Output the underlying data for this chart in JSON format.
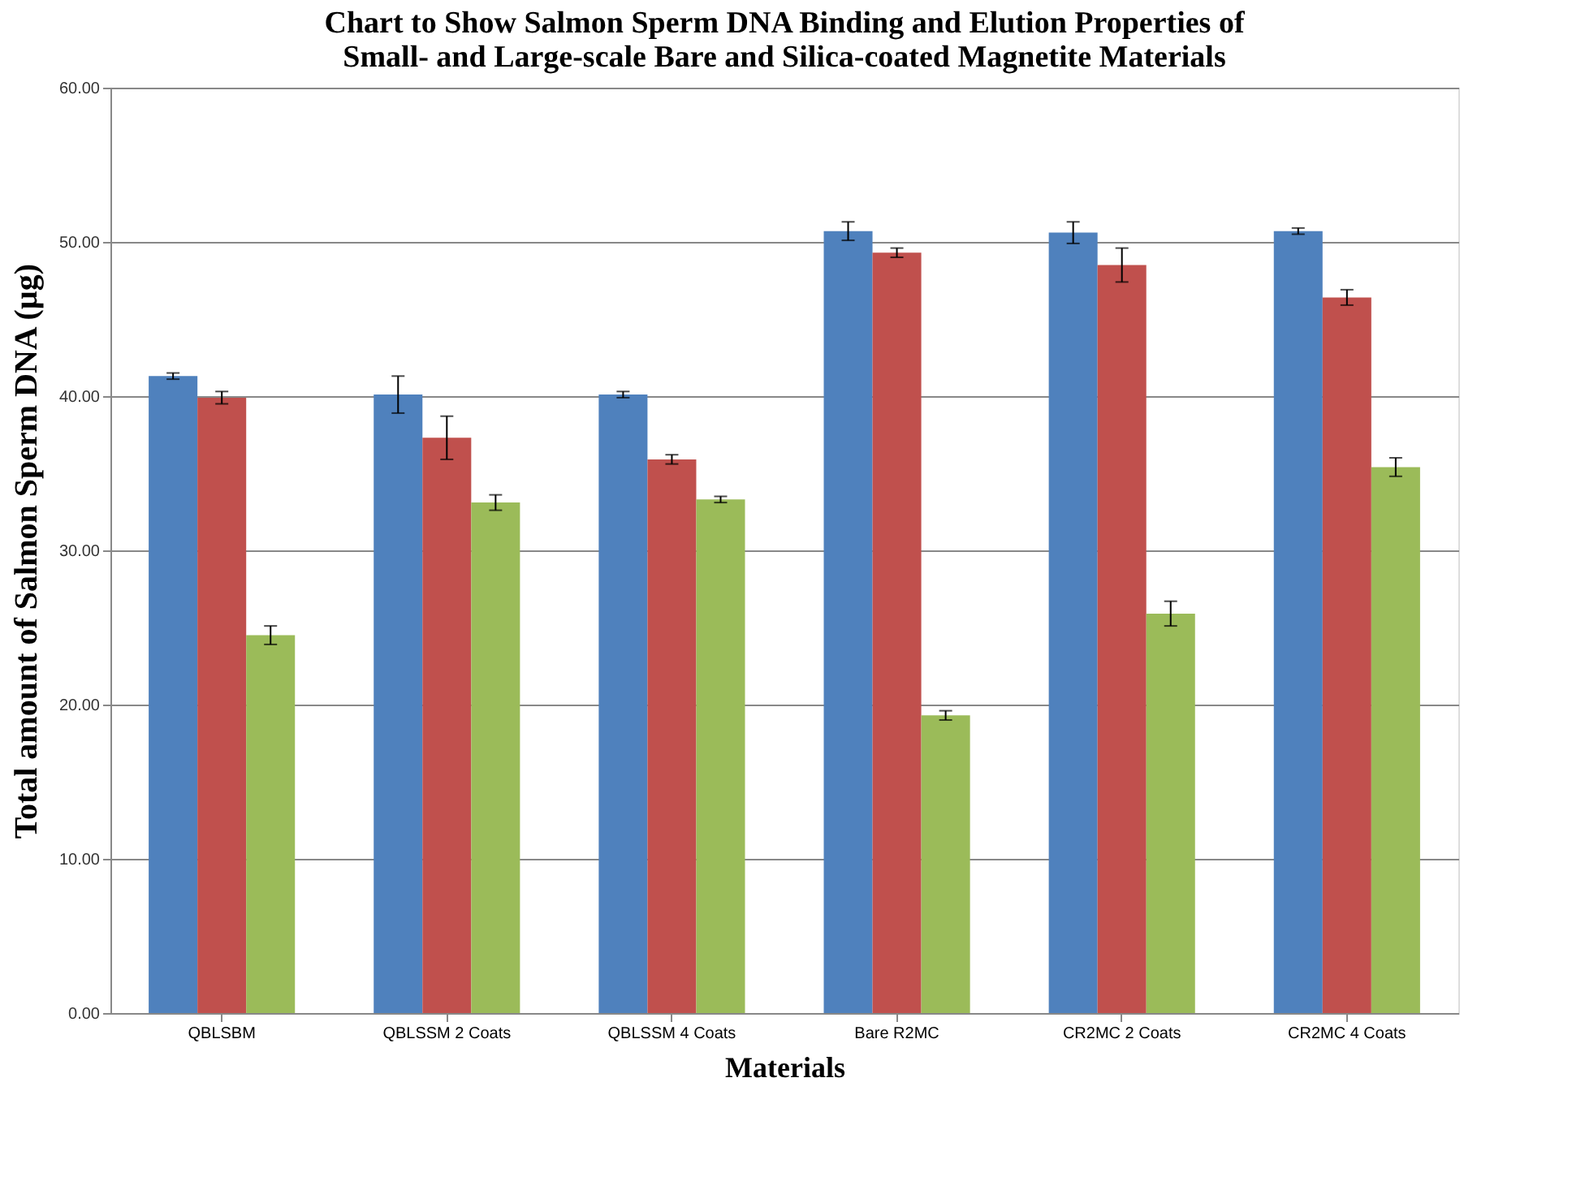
{
  "chart_data": {
    "type": "bar",
    "title": "Chart to Show Salmon Sperm  DNA Binding and Elution Properties of Small- and Large-scale Bare and Silica-coated Magnetite Materials",
    "xlabel": "Materials",
    "ylabel": "Total amount of Salmon Sperm DNA (µg)",
    "categories": [
      "QBLSBM",
      "QBLSSM  2 Coats",
      "QBLSSM  4 Coats",
      "Bare  R2MC",
      "CR2MC 2 Coats",
      "CR2MC 4 Coats"
    ],
    "series": [
      {
        "color": "#4f81bd",
        "values": [
          41.3,
          40.1,
          40.1,
          50.7,
          50.6,
          50.7
        ],
        "errors": [
          0.2,
          1.2,
          0.2,
          0.6,
          0.7,
          0.2
        ]
      },
      {
        "color": "#c0504d",
        "values": [
          39.9,
          37.3,
          35.9,
          49.3,
          48.5,
          46.4
        ],
        "errors": [
          0.4,
          1.4,
          0.3,
          0.3,
          1.1,
          0.5
        ]
      },
      {
        "color": "#9bbb59",
        "values": [
          24.5,
          33.1,
          33.3,
          19.3,
          25.9,
          35.4
        ],
        "errors": [
          0.6,
          0.5,
          0.2,
          0.3,
          0.8,
          0.6
        ]
      }
    ],
    "ylim": [
      0,
      60
    ],
    "yticks": [
      {
        "value": 0,
        "label": "0.00"
      },
      {
        "value": 10,
        "label": "10.00"
      },
      {
        "value": 20,
        "label": "20.00"
      },
      {
        "value": 30,
        "label": "30.00"
      },
      {
        "value": 40,
        "label": "40.00"
      },
      {
        "value": 50,
        "label": "50.00"
      },
      {
        "value": 60,
        "label": "60.00"
      }
    ],
    "grid": "y",
    "legend": false
  }
}
